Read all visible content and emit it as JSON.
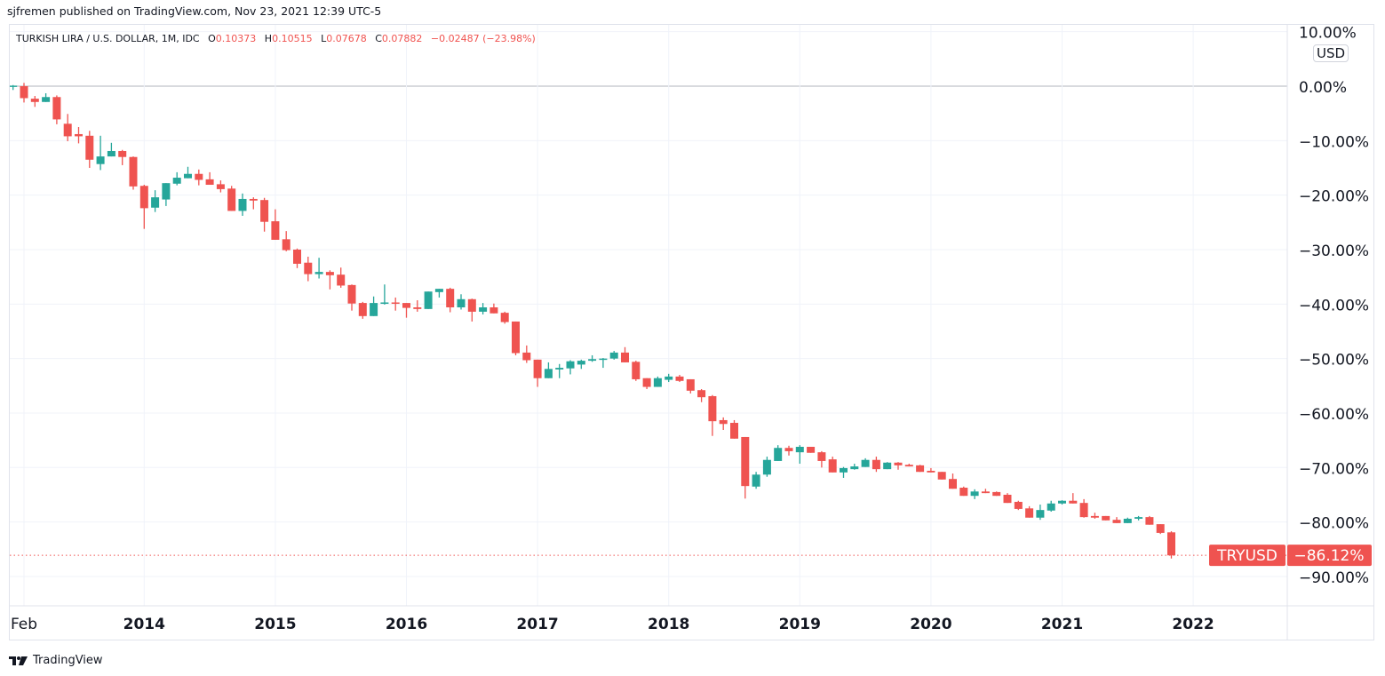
{
  "published": "sjfremen published on TradingView.com, Nov 23, 2021 12:39 UTC-5",
  "legend": {
    "symbol": "TURKISH LIRA / U.S. DOLLAR, 1M, IDC",
    "o_label": "O",
    "o": "0.10373",
    "h_label": "H",
    "h": "0.10515",
    "l_label": "L",
    "l": "0.07678",
    "c_label": "C",
    "c": "0.07882",
    "change": "−0.02487 (−23.98%)"
  },
  "unit_label": "USD",
  "footer_brand": "TradingView",
  "colors": {
    "up": "#26a69a",
    "down": "#ef5350",
    "grid": "#f0f3fa",
    "zero": "#b2b5be"
  },
  "chart_data": {
    "type": "candlestick",
    "title": "TURKISH LIRA / U.S. DOLLAR, 1M, IDC",
    "ylabel": "% change",
    "ylim": [
      -95,
      10
    ],
    "y_ticks": [
      "10.00%",
      "0.00%",
      "−10.00%",
      "−20.00%",
      "−30.00%",
      "−40.00%",
      "−50.00%",
      "−60.00%",
      "−70.00%",
      "−80.00%",
      "−90.00%"
    ],
    "y_tick_values": [
      10,
      0,
      -10,
      -20,
      -30,
      -40,
      -50,
      -60,
      -70,
      -80,
      -90
    ],
    "x_start": "2013-01",
    "x_ticks": [
      {
        "label": "Feb",
        "index": 1
      },
      {
        "label": "2014",
        "index": 12
      },
      {
        "label": "2015",
        "index": 24
      },
      {
        "label": "2016",
        "index": 36
      },
      {
        "label": "2017",
        "index": 48
      },
      {
        "label": "2018",
        "index": 60
      },
      {
        "label": "2019",
        "index": 72
      },
      {
        "label": "2020",
        "index": 84
      },
      {
        "label": "2021",
        "index": 96
      },
      {
        "label": "2022",
        "index": 108
      }
    ],
    "last_price": {
      "symbol": "TRYUSD",
      "value": -86.12,
      "label": "−86.12%"
    },
    "ohlc": [
      [
        0,
        0.2,
        -0.7,
        0.1
      ],
      [
        0,
        0.6,
        -3.0,
        -2.2
      ],
      [
        -2.3,
        -1.8,
        -3.8,
        -2.9
      ],
      [
        -2.9,
        -1.3,
        -2.9,
        -2.0
      ],
      [
        -2.0,
        -1.7,
        -7.0,
        -6.1
      ],
      [
        -6.9,
        -5.1,
        -10.1,
        -9.2
      ],
      [
        -8.8,
        -7.5,
        -10.5,
        -9.2
      ],
      [
        -9.1,
        -8.2,
        -15.0,
        -13.5
      ],
      [
        -14.3,
        -9.1,
        -15.4,
        -12.9
      ],
      [
        -12.9,
        -10.4,
        -12.9,
        -11.9
      ],
      [
        -11.9,
        -11.7,
        -14.5,
        -13.0
      ],
      [
        -13.0,
        -12.9,
        -19.0,
        -18.4
      ],
      [
        -18.3,
        -18.1,
        -26.2,
        -22.4
      ],
      [
        -22.3,
        -19.1,
        -23.1,
        -20.4
      ],
      [
        -20.8,
        -17.8,
        -22.0,
        -17.8
      ],
      [
        -17.9,
        -15.8,
        -18.2,
        -16.8
      ],
      [
        -16.9,
        -14.8,
        -16.9,
        -16.1
      ],
      [
        -16.1,
        -15.3,
        -18.2,
        -17.2
      ],
      [
        -17.1,
        -15.8,
        -18.1,
        -18.1
      ],
      [
        -18.0,
        -17.3,
        -19.5,
        -18.9
      ],
      [
        -18.8,
        -18.3,
        -22.9,
        -22.9
      ],
      [
        -22.9,
        -19.7,
        -23.8,
        -20.7
      ],
      [
        -20.7,
        -20.4,
        -22.6,
        -21.0
      ],
      [
        -20.9,
        -20.5,
        -26.7,
        -24.9
      ],
      [
        -24.8,
        -22.6,
        -28.2,
        -28.2
      ],
      [
        -28.1,
        -26.6,
        -30.3,
        -30.1
      ],
      [
        -30.0,
        -29.8,
        -33.4,
        -32.6
      ],
      [
        -32.4,
        -31.3,
        -35.8,
        -34.5
      ],
      [
        -34.5,
        -31.5,
        -35.3,
        -34.1
      ],
      [
        -34.1,
        -33.8,
        -37.3,
        -34.7
      ],
      [
        -34.6,
        -33.3,
        -37.0,
        -36.6
      ],
      [
        -36.5,
        -36.4,
        -41.2,
        -39.9
      ],
      [
        -39.8,
        -39.6,
        -42.7,
        -42.2
      ],
      [
        -42.2,
        -38.6,
        -42.2,
        -39.8
      ],
      [
        -39.8,
        -36.4,
        -40.1,
        -39.7
      ],
      [
        -39.7,
        -38.8,
        -41.2,
        -39.9
      ],
      [
        -39.8,
        -39.8,
        -42.5,
        -40.7
      ],
      [
        -40.6,
        -39.3,
        -41.4,
        -40.9
      ],
      [
        -40.9,
        -37.7,
        -40.9,
        -37.7
      ],
      [
        -37.8,
        -37.2,
        -38.8,
        -37.2
      ],
      [
        -37.2,
        -37.0,
        -41.5,
        -40.6
      ],
      [
        -40.6,
        -38.2,
        -41.0,
        -39.1
      ],
      [
        -39.1,
        -39.0,
        -43.2,
        -41.4
      ],
      [
        -41.4,
        -39.8,
        -41.9,
        -40.6
      ],
      [
        -40.6,
        -39.9,
        -41.7,
        -41.7
      ],
      [
        -41.6,
        -41.4,
        -43.6,
        -43.3
      ],
      [
        -43.2,
        -43.2,
        -49.4,
        -49.0
      ],
      [
        -48.9,
        -47.6,
        -50.8,
        -50.3
      ],
      [
        -50.2,
        -50.2,
        -55.2,
        -53.6
      ],
      [
        -53.6,
        -50.7,
        -53.6,
        -51.9
      ],
      [
        -52.0,
        -51.0,
        -53.6,
        -51.7
      ],
      [
        -51.8,
        -50.3,
        -52.9,
        -50.5
      ],
      [
        -51.1,
        -50.2,
        -51.9,
        -50.4
      ],
      [
        -50.4,
        -49.4,
        -50.6,
        -50.1
      ],
      [
        -50.2,
        -49.9,
        -51.7,
        -50.0
      ],
      [
        -50.0,
        -48.6,
        -50.2,
        -48.9
      ],
      [
        -48.9,
        -47.9,
        -50.7,
        -50.7
      ],
      [
        -50.6,
        -50.4,
        -54.1,
        -53.8
      ],
      [
        -53.6,
        -53.6,
        -55.6,
        -55.2
      ],
      [
        -55.2,
        -53.3,
        -55.2,
        -53.6
      ],
      [
        -53.9,
        -52.8,
        -54.3,
        -53.3
      ],
      [
        -53.3,
        -53.0,
        -54.3,
        -54.1
      ],
      [
        -53.8,
        -53.8,
        -56.4,
        -55.9
      ],
      [
        -55.8,
        -55.6,
        -58.0,
        -57.1
      ],
      [
        -56.9,
        -56.7,
        -64.2,
        -61.5
      ],
      [
        -61.3,
        -60.8,
        -63.1,
        -62.0
      ],
      [
        -61.8,
        -61.3,
        -64.7,
        -64.7
      ],
      [
        -64.4,
        -64.4,
        -75.7,
        -73.4
      ],
      [
        -73.5,
        -70.8,
        -73.9,
        -71.3
      ],
      [
        -71.3,
        -68.0,
        -71.7,
        -68.6
      ],
      [
        -68.8,
        -65.9,
        -68.8,
        -66.4
      ],
      [
        -66.4,
        -66.0,
        -67.8,
        -67.0
      ],
      [
        -67.2,
        -65.9,
        -69.3,
        -66.2
      ],
      [
        -66.2,
        -66.2,
        -67.3,
        -67.3
      ],
      [
        -67.2,
        -67.0,
        -70.0,
        -68.8
      ],
      [
        -68.5,
        -68.0,
        -70.9,
        -70.9
      ],
      [
        -70.9,
        -69.9,
        -71.9,
        -70.1
      ],
      [
        -70.3,
        -69.3,
        -70.4,
        -69.8
      ],
      [
        -69.9,
        -68.3,
        -69.9,
        -68.6
      ],
      [
        -68.6,
        -68.0,
        -70.8,
        -70.3
      ],
      [
        -70.3,
        -69.0,
        -70.3,
        -69.1
      ],
      [
        -69.1,
        -69.0,
        -70.4,
        -69.6
      ],
      [
        -69.5,
        -69.3,
        -69.8,
        -69.8
      ],
      [
        -69.6,
        -69.5,
        -70.8,
        -70.8
      ],
      [
        -70.6,
        -70.1,
        -70.9,
        -70.9
      ],
      [
        -70.8,
        -70.8,
        -72.2,
        -72.2
      ],
      [
        -72.1,
        -71.1,
        -73.9,
        -73.9
      ],
      [
        -73.7,
        -73.5,
        -75.2,
        -75.2
      ],
      [
        -75.2,
        -74.0,
        -75.8,
        -74.4
      ],
      [
        -74.4,
        -73.9,
        -74.7,
        -74.7
      ],
      [
        -74.5,
        -74.4,
        -75.2,
        -75.2
      ],
      [
        -75.0,
        -74.7,
        -76.5,
        -76.5
      ],
      [
        -76.3,
        -76.1,
        -77.8,
        -77.6
      ],
      [
        -77.5,
        -77.1,
        -79.2,
        -79.2
      ],
      [
        -79.2,
        -76.8,
        -79.6,
        -77.8
      ],
      [
        -77.9,
        -76.1,
        -78.1,
        -76.6
      ],
      [
        -76.6,
        -76.0,
        -76.8,
        -76.1
      ],
      [
        -76.1,
        -74.7,
        -76.6,
        -76.6
      ],
      [
        -76.5,
        -75.8,
        -79.2,
        -79.1
      ],
      [
        -78.9,
        -78.3,
        -79.4,
        -79.2
      ],
      [
        -78.9,
        -78.9,
        -79.7,
        -79.7
      ],
      [
        -79.6,
        -79.1,
        -80.2,
        -80.2
      ],
      [
        -80.2,
        -79.2,
        -80.2,
        -79.4
      ],
      [
        -79.4,
        -78.9,
        -79.7,
        -79.1
      ],
      [
        -79.1,
        -78.9,
        -80.5,
        -80.5
      ],
      [
        -80.4,
        -80.4,
        -82.2,
        -82.0
      ],
      [
        -81.9,
        -81.7,
        -86.7,
        -86.12
      ]
    ]
  }
}
